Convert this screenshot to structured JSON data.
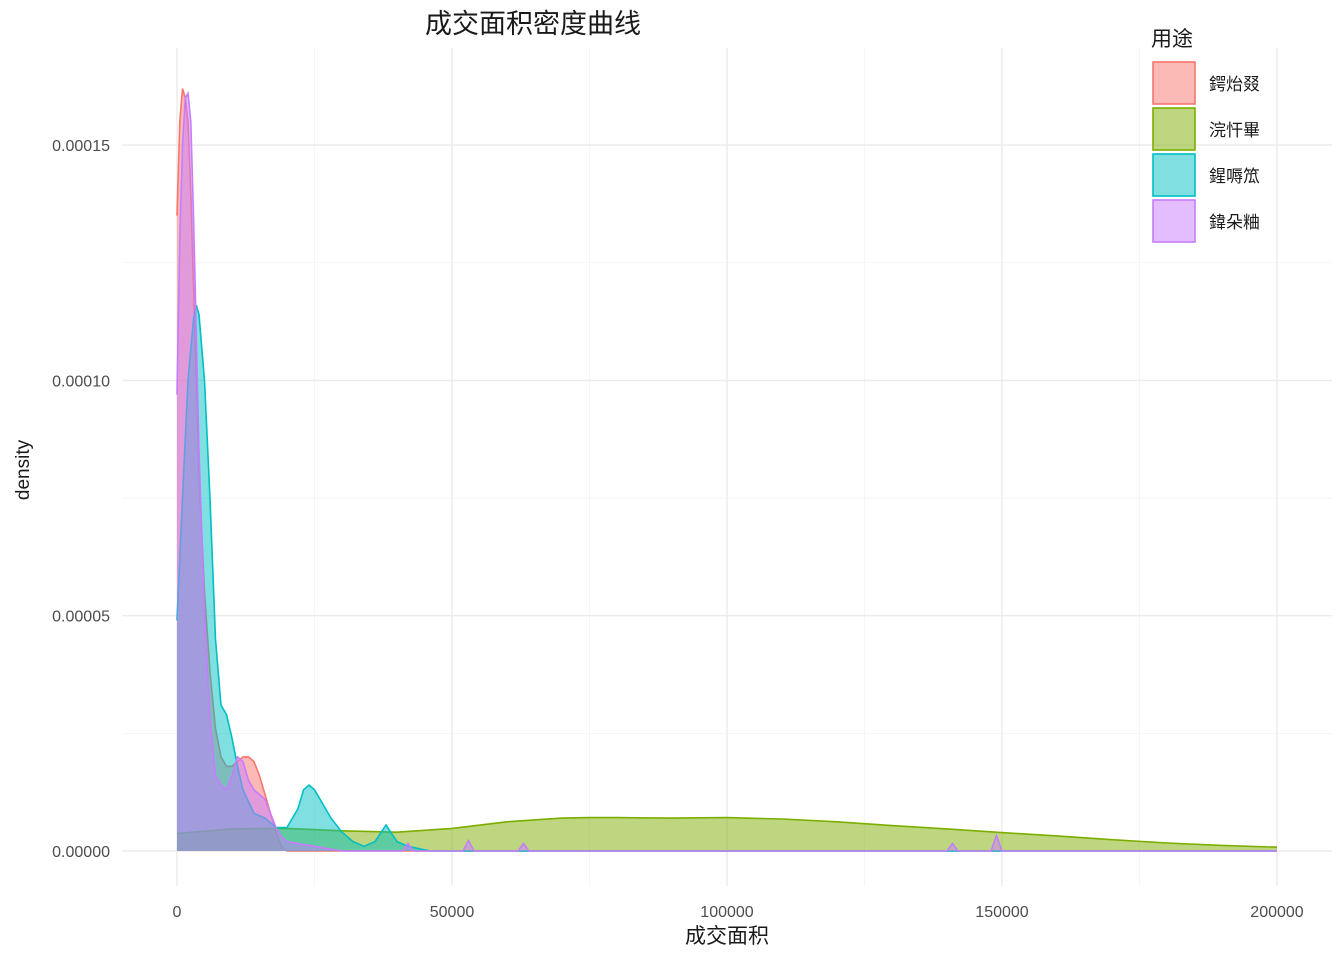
{
  "chart_data": {
    "type": "area",
    "subtype": "density",
    "title": "成交面积密度曲线",
    "xlabel": "成交面积",
    "ylabel": "density",
    "xlim": [
      0,
      200000
    ],
    "ylim": [
      0,
      0.000162
    ],
    "x_ticks": [
      0,
      50000,
      100000,
      150000,
      200000
    ],
    "x_tick_labels": [
      "0",
      "50000",
      "100000",
      "150000",
      "200000"
    ],
    "y_ticks": [
      0,
      5e-05,
      0.0001,
      0.00015
    ],
    "y_tick_labels": [
      "0.00000",
      "0.00005",
      "0.00010",
      "0.00015"
    ],
    "grid": true,
    "legend": {
      "title": "用途",
      "position": "top-right"
    },
    "series": [
      {
        "name": "鍔炲叕",
        "color": "#F8766D",
        "fill_opacity": 0.5,
        "x": [
          0,
          500,
          1000,
          1500,
          2000,
          2500,
          3000,
          3500,
          4000,
          5000,
          6000,
          7000,
          8000,
          9000,
          10000,
          11000,
          12000,
          13000,
          14000,
          15000,
          16000,
          17000,
          18000,
          19000,
          20000,
          25000,
          30000,
          50000,
          100000,
          150000,
          200000
        ],
        "y": [
          0.000135,
          0.000155,
          0.000162,
          0.00016,
          0.000155,
          0.00014,
          0.00012,
          0.0001,
          8e-05,
          5.5e-05,
          3.8e-05,
          2.6e-05,
          2e-05,
          1.8e-05,
          1.8e-05,
          1.9e-05,
          2e-05,
          2e-05,
          1.9e-05,
          1.6e-05,
          1.2e-05,
          8e-06,
          4e-06,
          1e-06,
          0.0,
          0.0,
          0.0,
          0.0,
          0.0,
          0.0,
          0.0
        ]
      },
      {
        "name": "浣忓畢",
        "color": "#7CAE00",
        "fill_opacity": 0.5,
        "x": [
          0,
          10000,
          20000,
          30000,
          40000,
          50000,
          60000,
          70000,
          75000,
          80000,
          90000,
          100000,
          110000,
          120000,
          130000,
          140000,
          150000,
          160000,
          170000,
          180000,
          190000,
          200000
        ],
        "y": [
          3.7e-06,
          4.7e-06,
          4.8e-06,
          4.3e-06,
          4e-06,
          4.8e-06,
          6.2e-06,
          7e-06,
          7.1e-06,
          7.1e-06,
          7e-06,
          7.1e-06,
          6.8e-06,
          6.2e-06,
          5.4e-06,
          4.7e-06,
          3.9e-06,
          3.2e-06,
          2.4e-06,
          1.7e-06,
          1.2e-06,
          8e-07
        ]
      },
      {
        "name": "鍟嗕笟",
        "color": "#00BFC4",
        "fill_opacity": 0.5,
        "x": [
          0,
          1000,
          2000,
          3000,
          3500,
          4000,
          5000,
          6000,
          7000,
          8000,
          9000,
          10000,
          11000,
          12000,
          14000,
          16000,
          18000,
          20000,
          22000,
          23000,
          24000,
          25000,
          26000,
          27000,
          28000,
          30000,
          32000,
          34000,
          36000,
          38000,
          40000,
          42000,
          44000,
          46000,
          200000
        ],
        "y": [
          4.9e-05,
          7.5e-05,
          0.0001,
          0.000113,
          0.000116,
          0.000114,
          0.0001,
          7.5e-05,
          4.5e-05,
          3.1e-05,
          2.9e-05,
          2.4e-05,
          1.8e-05,
          1.3e-05,
          8e-06,
          7e-06,
          5e-06,
          5e-06,
          9e-06,
          1.3e-05,
          1.4e-05,
          1.3e-05,
          1.1e-05,
          9e-06,
          7e-06,
          4e-06,
          2e-06,
          1e-06,
          2e-06,
          5.5e-06,
          2e-06,
          1e-06,
          5e-07,
          0.0,
          0.0
        ]
      },
      {
        "name": "鍏朵粬",
        "color": "#C77CFF",
        "fill_opacity": 0.5,
        "x": [
          0,
          500,
          1000,
          1500,
          2000,
          2500,
          3000,
          3500,
          4000,
          5000,
          6000,
          7000,
          8000,
          9000,
          10000,
          11000,
          12000,
          13000,
          14000,
          15000,
          16000,
          17000,
          18000,
          19000,
          20000,
          25000,
          30000,
          41000,
          42000,
          43000,
          52000,
          53000,
          54000,
          62000,
          63000,
          64000,
          140000,
          141000,
          142000,
          148000,
          149000,
          150000,
          151000,
          200000
        ],
        "y": [
          9.7e-05,
          0.00013,
          0.00015,
          0.00016,
          0.000161,
          0.000155,
          0.000135,
          0.00011,
          8.5e-05,
          5e-05,
          2.8e-05,
          1.6e-05,
          1.4e-05,
          1.3e-05,
          1.6e-05,
          2e-05,
          1.9e-05,
          1.5e-05,
          1.3e-05,
          1.2e-05,
          1.1e-05,
          8e-06,
          5e-06,
          3e-06,
          2e-06,
          1e-06,
          0.0,
          0.0,
          1.6e-06,
          0.0,
          0.0,
          2.2e-06,
          0.0,
          0.0,
          1.6e-06,
          0.0,
          0.0,
          1.6e-06,
          0.0,
          0.0,
          3.3e-06,
          0.0,
          0.0,
          0.0
        ]
      }
    ]
  }
}
